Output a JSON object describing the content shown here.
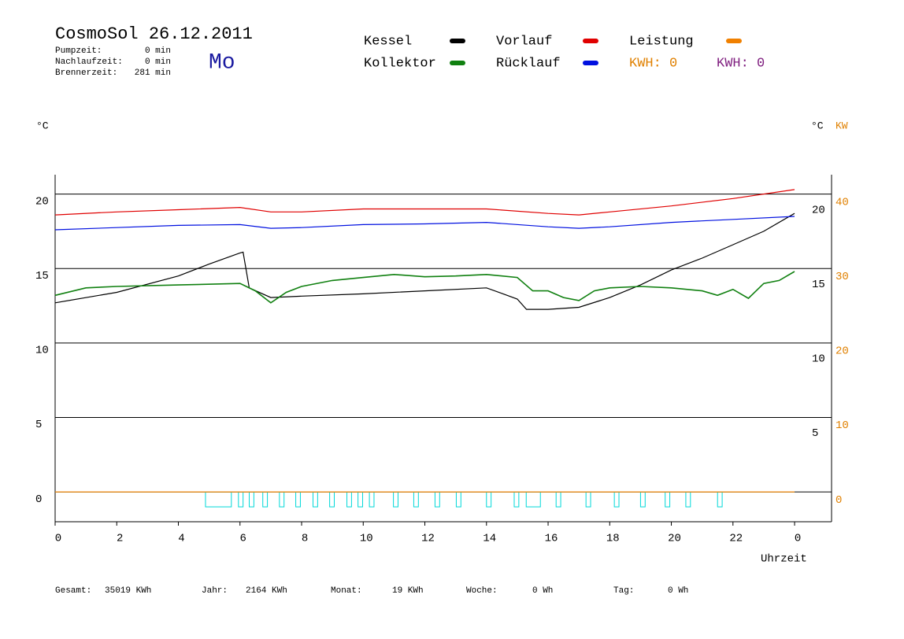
{
  "header": {
    "title": "CosmoSol 26.12.2011",
    "weekday": "Mo",
    "weekday_color": "#1a1aa0",
    "times": [
      {
        "label": "Pumpzeit:",
        "value": "0 min"
      },
      {
        "label": "Nachlaufzeit:",
        "value": "0 min"
      },
      {
        "label": "Brennerzeit:",
        "value": "281 min"
      }
    ]
  },
  "chart_data": {
    "type": "line",
    "y_unit": "°C",
    "y2_unit_left": "°C",
    "y2_unit": "KW",
    "xlabel": "Uhrzeit",
    "xlim": [
      0,
      25.2
    ],
    "xticks": [
      0,
      2,
      4,
      6,
      8,
      10,
      12,
      14,
      16,
      18,
      20,
      22,
      {
        "value": 24,
        "label": "0"
      }
    ],
    "ylim": [
      -2,
      21.3
    ],
    "yticks": [
      0,
      5,
      10,
      15,
      20
    ],
    "grid": true,
    "yticks_right": [
      5,
      10,
      15,
      20
    ],
    "y2lim": [
      -4,
      42.6
    ],
    "y2ticks": [
      0,
      10,
      20,
      30,
      40
    ],
    "y2_color": "#e08000",
    "series": [
      {
        "name": "Kessel",
        "color": "#000000",
        "x": [
          0,
          2,
          4,
          5,
          6,
          6.1,
          6.3,
          7,
          8,
          10,
          12,
          14,
          15,
          15.3,
          16,
          17,
          18,
          19,
          20,
          21,
          22,
          23,
          24
        ],
        "values": [
          12.7,
          13.4,
          14.5,
          15.3,
          16.05,
          16.1,
          13.7,
          13.05,
          13.15,
          13.3,
          13.5,
          13.7,
          12.95,
          12.26,
          12.26,
          12.4,
          13.05,
          13.9,
          14.9,
          15.7,
          16.6,
          17.5,
          18.7
        ]
      },
      {
        "name": "Vorlauf",
        "color": "#e00000",
        "x": [
          0,
          2,
          4,
          6,
          7,
          8,
          10,
          12,
          14,
          16,
          17,
          18,
          20,
          22,
          24
        ],
        "values": [
          18.6,
          18.8,
          18.95,
          19.1,
          18.8,
          18.8,
          19.0,
          19.0,
          19.0,
          18.7,
          18.6,
          18.8,
          19.2,
          19.7,
          20.3
        ]
      },
      {
        "name": "Leistung",
        "color": "#f08000",
        "axis": "y2",
        "x": [
          0,
          24
        ],
        "values": [
          0,
          0
        ]
      },
      {
        "name": "Kollektor",
        "color": "#108010",
        "x": [
          0,
          1,
          2,
          4,
          6,
          6.5,
          7,
          7.5,
          8,
          9,
          10,
          11,
          12,
          13,
          14,
          15,
          15.5,
          16,
          16.5,
          17,
          17.5,
          18,
          19,
          20,
          21,
          21.5,
          22,
          22.5,
          23,
          23.5,
          24
        ],
        "values": [
          13.2,
          13.7,
          13.8,
          13.9,
          14.0,
          13.5,
          12.7,
          13.4,
          13.8,
          14.2,
          14.4,
          14.6,
          14.45,
          14.5,
          14.6,
          14.4,
          13.5,
          13.5,
          13.05,
          12.85,
          13.5,
          13.7,
          13.8,
          13.7,
          13.5,
          13.2,
          13.6,
          13.0,
          14.0,
          14.2,
          14.8
        ]
      },
      {
        "name": "Rücklauf",
        "color": "#0010e0",
        "x": [
          0,
          2,
          4,
          6,
          7,
          8,
          10,
          12,
          14,
          16,
          17,
          18,
          20,
          22,
          24
        ],
        "values": [
          17.6,
          17.75,
          17.9,
          17.95,
          17.7,
          17.75,
          17.95,
          18.0,
          18.1,
          17.8,
          17.7,
          17.8,
          18.1,
          18.3,
          18.5
        ]
      }
    ],
    "energy_labels": [
      {
        "text": "KWH: 0",
        "color": "#e08000"
      },
      {
        "text": "KWH: 0",
        "color": "#802080"
      }
    ],
    "pump": {
      "color": "#00d8d8",
      "level": -1,
      "starts": [
        4.88,
        5.95,
        6.3,
        6.74,
        7.28,
        7.81,
        8.37,
        8.91,
        9.47,
        9.83,
        10.2,
        10.98,
        11.64,
        12.33,
        13.02,
        14.0,
        14.9,
        15.29,
        16.26,
        17.23,
        18.15,
        19.0,
        19.8,
        20.47,
        21.5
      ],
      "ends": [
        5.72,
        6.1,
        6.45,
        6.89,
        7.43,
        7.96,
        8.52,
        9.06,
        9.62,
        9.98,
        10.35,
        11.13,
        11.79,
        12.48,
        13.17,
        14.15,
        15.05,
        15.75,
        16.41,
        17.38,
        18.3,
        19.15,
        19.95,
        20.62,
        21.65
      ]
    }
  },
  "footer": [
    {
      "label": "Gesamt:",
      "value": "35019 KWh"
    },
    {
      "label": "Jahr:",
      "value": "2164 KWh"
    },
    {
      "label": "Monat:",
      "value": "19 KWh"
    },
    {
      "label": "Woche:",
      "value": "0 Wh"
    },
    {
      "label": "Tag:",
      "value": "0 Wh"
    }
  ]
}
